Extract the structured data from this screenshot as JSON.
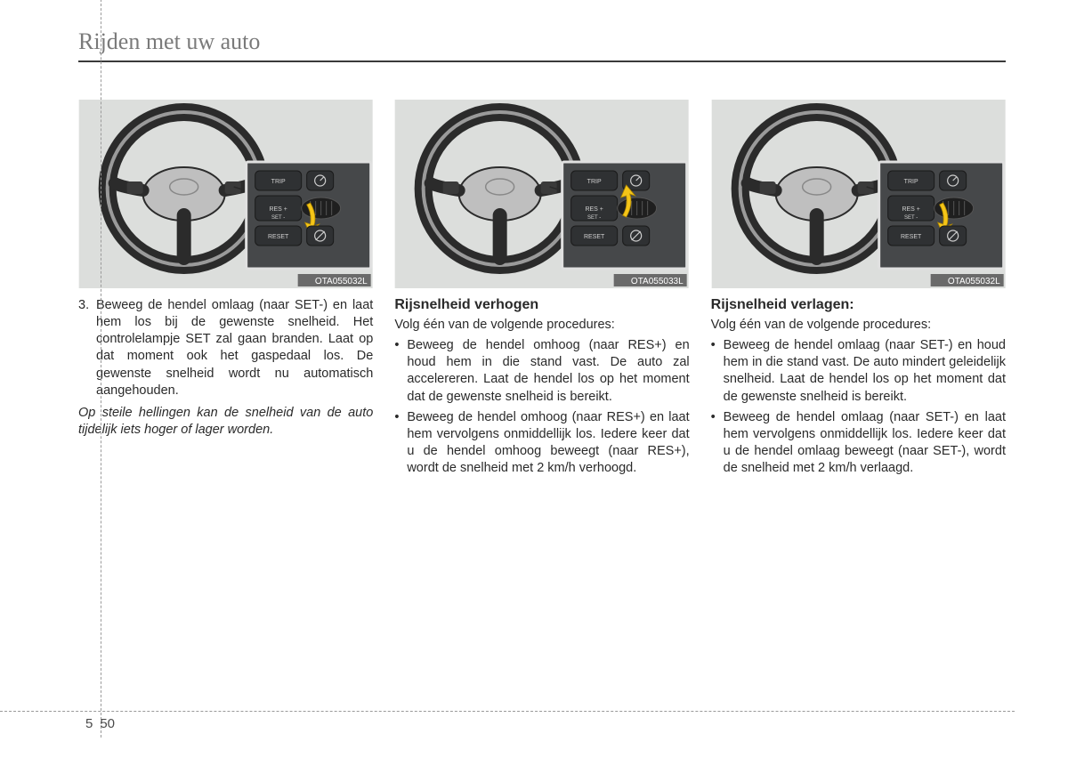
{
  "header": {
    "title": "Rijden met uw auto"
  },
  "figures": {
    "bg": "#dcdedc",
    "wheel_outer": "#2b2b2b",
    "wheel_inner": "#9a9a9a",
    "wheel_hub": "#bfbfbf",
    "panel_bg": "#46484a",
    "panel_border": "#e0e0e0",
    "btn_bg": "#2f3133",
    "btn_text": "#cfcfcf",
    "arrow": "#f5c518",
    "caption_bg": "#6a6a6a",
    "caption_text": "#ffffff",
    "fig1": {
      "caption": "OTA055032L",
      "arrow_dir": "down"
    },
    "fig2": {
      "caption": "OTA055033L",
      "arrow_dir": "up"
    },
    "fig3": {
      "caption": "OTA055032L",
      "arrow_dir": "down"
    },
    "btn_labels": {
      "trip": "TRIP",
      "res": "RES +",
      "set": "SET -",
      "reset": "RESET"
    }
  },
  "col1": {
    "item_num": "3.",
    "item_text": "Beweeg de hendel omlaag (naar SET-) en laat hem los bij de gewenste snelheid. Het controlelampje SET zal gaan branden. Laat op dat moment ook het gaspedaal los. De gewenste snelheid wordt nu automatisch aangehouden.",
    "note": "Op steile hellingen kan de snelheid van de auto tijdelijk iets hoger of lager worden."
  },
  "col2": {
    "heading": "Rijsnelheid verhogen",
    "intro": "Volg één van de volgende procedures:",
    "bullets": [
      "Beweeg de hendel omhoog (naar RES+) en houd hem in die stand vast. De auto zal accelereren. Laat de hendel los op het moment dat de gewenste snelheid is bereikt.",
      "Beweeg de hendel omhoog (naar RES+) en laat hem vervolgens onmiddellijk los. Iedere keer dat u de hendel omhoog beweegt (naar RES+), wordt de snelheid met 2 km/h verhoogd."
    ]
  },
  "col3": {
    "heading": "Rijsnelheid verlagen:",
    "intro": "Volg één van de volgende procedures:",
    "bullets": [
      "Beweeg de hendel omlaag (naar SET-) en houd hem in die stand vast. De auto mindert geleidelijk snelheid. Laat de hendel los op het moment dat de gewenste snelheid is bereikt.",
      "Beweeg de hendel omlaag (naar SET-) en laat hem vervolgens onmiddellijk los. Iedere keer dat u de hendel omlaag beweegt (naar SET-), wordt de snelheid met 2 km/h verlaagd."
    ]
  },
  "footer": {
    "chapter": "5",
    "page": "50"
  }
}
